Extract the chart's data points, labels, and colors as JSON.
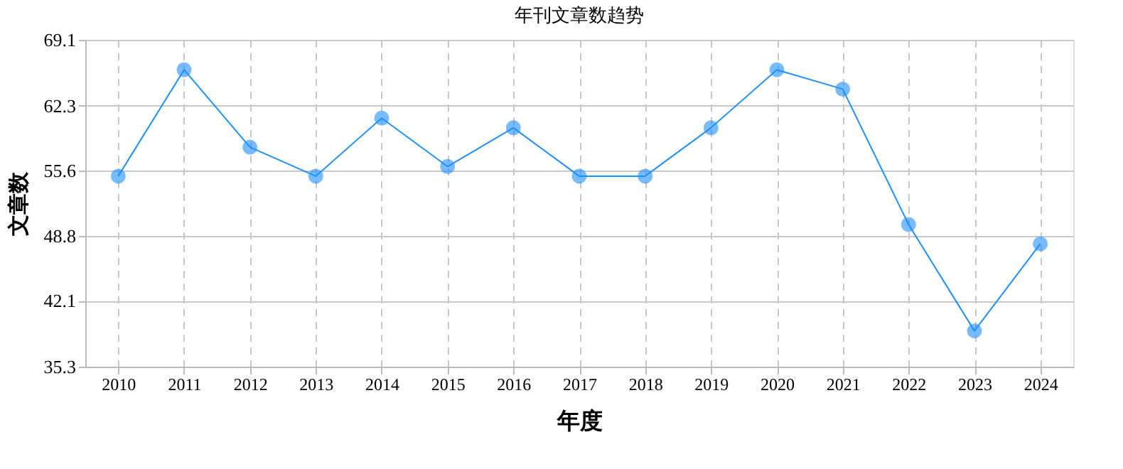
{
  "chart_data": {
    "type": "line",
    "title": "年刊文章数趋势",
    "xlabel": "年度",
    "ylabel": "文章数",
    "categories": [
      "2010",
      "2011",
      "2012",
      "2013",
      "2014",
      "2015",
      "2016",
      "2017",
      "2018",
      "2019",
      "2020",
      "2021",
      "2022",
      "2023",
      "2024"
    ],
    "series": [
      {
        "color": "#1e90ff",
        "values": [
          55,
          66,
          58,
          55,
          61,
          56,
          60,
          55,
          55,
          60,
          66,
          64,
          50,
          39,
          48
        ]
      }
    ],
    "ylim": [
      35.3,
      69.1
    ],
    "yticks": [
      35.3,
      42.1,
      48.8,
      55.6,
      62.3,
      69.1
    ],
    "grid": true,
    "marker": "circle",
    "line_style": "solid"
  }
}
